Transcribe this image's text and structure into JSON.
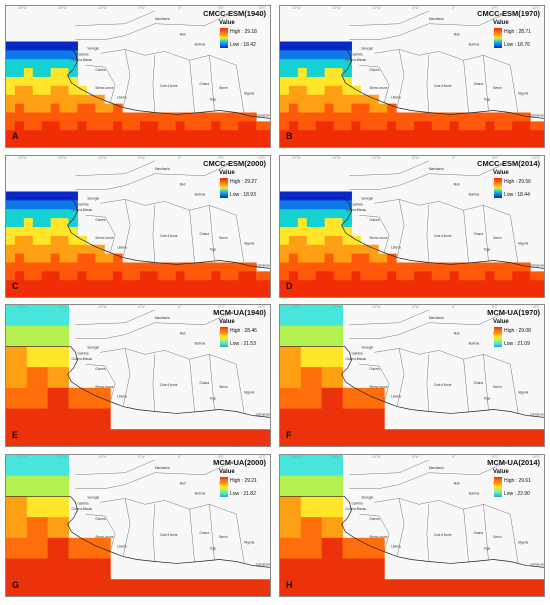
{
  "legend_title": "Value",
  "panels": [
    {
      "letter": "A",
      "title": "CMCC-ESM(1940)",
      "high": "High : 29.18",
      "low": "Low : 18.42",
      "model": "cmcc"
    },
    {
      "letter": "B",
      "title": "CMCC-ESM(1970)",
      "high": "High : 28.71",
      "low": "Low : 18.76",
      "model": "cmcc"
    },
    {
      "letter": "C",
      "title": "CMCC-ESM(2000)",
      "high": "High : 29.27",
      "low": "Low : 18.93",
      "model": "cmcc"
    },
    {
      "letter": "D",
      "title": "CMCC-ESM(2014)",
      "high": "High : 29.56",
      "low": "Low : 18.44",
      "model": "cmcc"
    },
    {
      "letter": "E",
      "title": "MCM-UA(1940)",
      "high": "High : 28.46",
      "low": "Low : 21.53",
      "model": "mcm"
    },
    {
      "letter": "F",
      "title": "MCM-UA(1970)",
      "high": "High : 29.08",
      "low": "Low : 21.09",
      "model": "mcm"
    },
    {
      "letter": "G",
      "title": "MCM-UA(2000)",
      "high": "High : 29.21",
      "low": "Low : 21.82",
      "model": "mcm"
    },
    {
      "letter": "H",
      "title": "MCM-UA(2014)",
      "high": "High : 29.61",
      "low": "Low : 22.90",
      "model": "mcm"
    }
  ],
  "country_labels": [
    "Mauritania",
    "Mali",
    "Senegal",
    "Gambia",
    "Guinea-Bissau",
    "Guinea",
    "Sierra Leone",
    "Liberia",
    "Cote d'Ivoire",
    "Burkina",
    "Ghana",
    "Benin",
    "Togo",
    "Niger",
    "Nigeria",
    "Cameroon"
  ],
  "tick_labels": [
    "20°W",
    "15°W",
    "10°W",
    "5°W",
    "0°",
    "5°E",
    "10°E"
  ],
  "colors": {
    "cmcc_ramp": [
      "#0a28c8",
      "#0f78e8",
      "#14d2d2",
      "#ffe628",
      "#ffa014",
      "#ff5a0a",
      "#f02d05"
    ],
    "mcm_ramp": [
      "#3296dc",
      "#46e6dc",
      "#b4f050",
      "#ffe628",
      "#ffa014",
      "#ff6e0a",
      "#eb320a"
    ]
  }
}
